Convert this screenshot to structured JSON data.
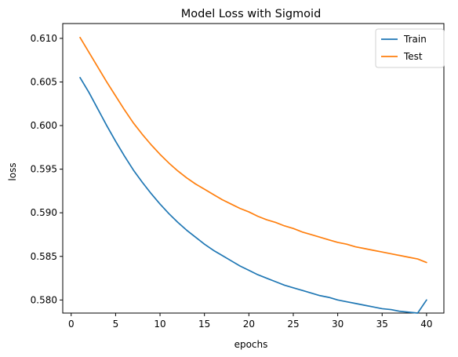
{
  "chart_data": {
    "type": "line",
    "title": "Model Loss with Sigmoid",
    "xlabel": "epochs",
    "ylabel": "loss",
    "xlim": [
      -0.95,
      41.95
    ],
    "ylim": [
      0.5785,
      0.6117
    ],
    "xticks": [
      0,
      5,
      10,
      15,
      20,
      25,
      30,
      35,
      40
    ],
    "yticks": [
      0.58,
      0.585,
      0.59,
      0.595,
      0.6,
      0.605,
      0.61
    ],
    "ytick_labels": [
      "0.580",
      "0.585",
      "0.590",
      "0.595",
      "0.600",
      "0.605",
      "0.610"
    ],
    "grid": false,
    "legend_position": "top-right",
    "x": [
      1,
      2,
      3,
      4,
      5,
      6,
      7,
      8,
      9,
      10,
      11,
      12,
      13,
      14,
      15,
      16,
      17,
      18,
      19,
      20,
      21,
      22,
      23,
      24,
      25,
      26,
      27,
      28,
      29,
      30,
      31,
      32,
      33,
      34,
      35,
      36,
      37,
      38,
      39,
      40
    ],
    "series": [
      {
        "name": "Train",
        "color": "#1f77b4",
        "values": [
          0.6055,
          0.6038,
          0.6019,
          0.6,
          0.5982,
          0.5965,
          0.5949,
          0.5935,
          0.5922,
          0.591,
          0.5899,
          0.5889,
          0.588,
          0.5872,
          0.5864,
          0.5857,
          0.5851,
          0.5845,
          0.5839,
          0.5834,
          0.5829,
          0.5825,
          0.5821,
          0.5817,
          0.5814,
          0.5811,
          0.5808,
          0.5805,
          0.5803,
          0.58,
          0.5798,
          0.5796,
          0.5794,
          0.5792,
          0.579,
          0.5789,
          0.5787,
          0.5786,
          0.5785,
          0.58
        ]
      },
      {
        "name": "Test",
        "color": "#ff7f0e",
        "values": [
          0.6101,
          0.6084,
          0.6067,
          0.605,
          0.6034,
          0.6018,
          0.6003,
          0.599,
          0.5978,
          0.5967,
          0.5957,
          0.5948,
          0.594,
          0.5933,
          0.5927,
          0.5921,
          0.5915,
          0.591,
          0.5905,
          0.5901,
          0.5896,
          0.5892,
          0.5889,
          0.5885,
          0.5882,
          0.5878,
          0.5875,
          0.5872,
          0.5869,
          0.5866,
          0.5864,
          0.5861,
          0.5859,
          0.5857,
          0.5855,
          0.5853,
          0.5851,
          0.5849,
          0.5847,
          0.5843
        ]
      }
    ]
  }
}
